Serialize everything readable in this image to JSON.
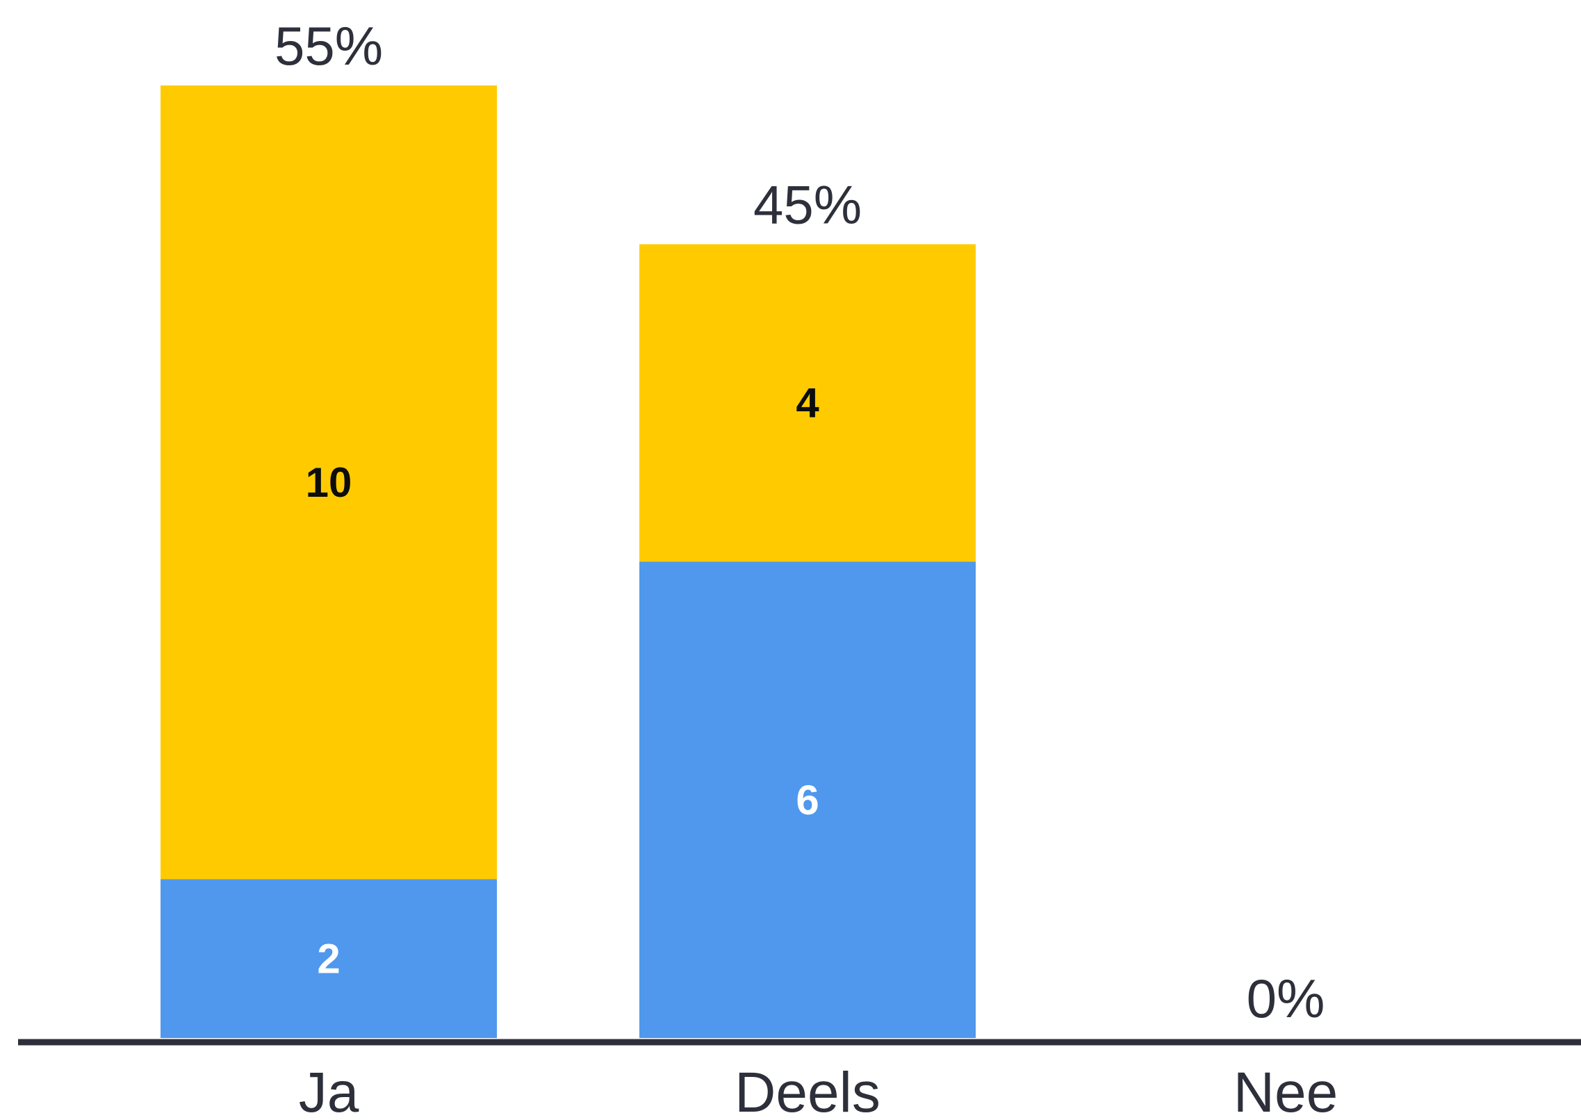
{
  "chart_data": {
    "type": "bar",
    "stacked": true,
    "title": "",
    "xlabel": "",
    "ylabel": "",
    "categories": [
      "Ja",
      "Deels",
      "Nee"
    ],
    "percent_labels": [
      "55%",
      "45%",
      "0%"
    ],
    "series": [
      {
        "values": [
          2,
          6,
          0
        ],
        "color": "#4f98ee",
        "label_color": "#ffffff"
      },
      {
        "values": [
          10,
          4,
          0
        ],
        "color": "#ffcb00",
        "label_color": "#0d0d0d"
      }
    ],
    "ylim": [
      0,
      12
    ],
    "grid": false,
    "legend": "none",
    "axis_color": "#2d2f3a"
  }
}
